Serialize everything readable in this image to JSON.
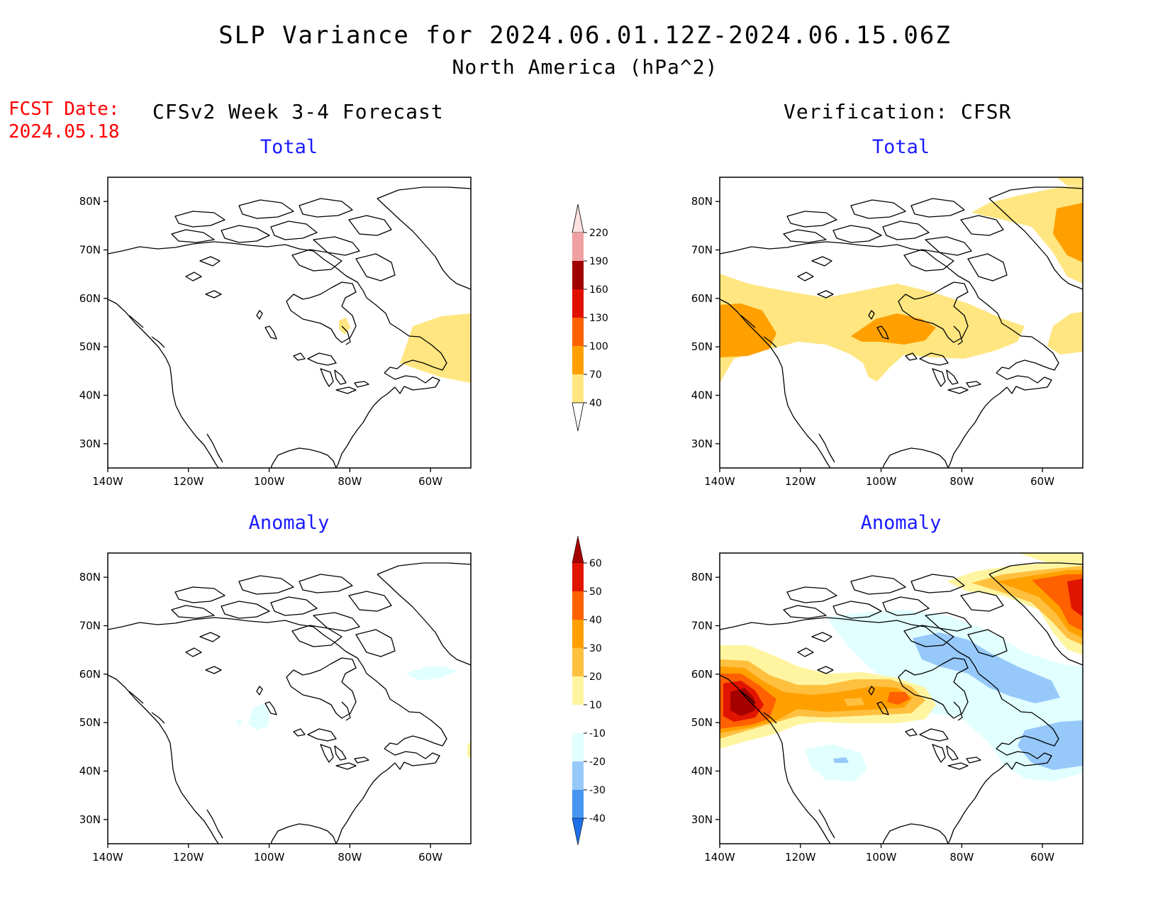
{
  "header": {
    "title": "SLP Variance for 2024.06.01.12Z-2024.06.15.06Z",
    "subtitle": "North America (hPa^2)",
    "fcst_label": "FCST Date:",
    "fcst_date": "2024.05.18"
  },
  "columns": {
    "left": "CFSv2 Week 3-4 Forecast",
    "right": "Verification: CFSR"
  },
  "panels": {
    "top_left": "Total",
    "top_right": "Total",
    "bottom_left": "Anomaly",
    "bottom_right": "Anomaly"
  },
  "axes": {
    "lon_ticks": [
      "140W",
      "120W",
      "100W",
      "80W",
      "60W"
    ],
    "lat_ticks": [
      "80N",
      "70N",
      "60N",
      "50N",
      "40N",
      "30N"
    ],
    "lon_range": [
      -140,
      -50
    ],
    "lat_range": [
      25,
      85
    ]
  },
  "total_scale": {
    "labels": [
      "40",
      "70",
      "100",
      "130",
      "160",
      "190",
      "220"
    ],
    "colors": [
      "#ffe680",
      "#ffa000",
      "#ff6000",
      "#e01000",
      "#a00000",
      "#f0a0a0",
      "#fde0e0"
    ]
  },
  "anomaly_scale": {
    "labels": [
      "-40",
      "-30",
      "-20",
      "-10",
      "10",
      "20",
      "30",
      "40",
      "50",
      "60"
    ],
    "colors": [
      "#1e6ee6",
      "#4696f0",
      "#96c8fa",
      "#e1ffff",
      "#ffffff",
      "#fff5a0",
      "#ffc040",
      "#ffa000",
      "#ff6000",
      "#e11400",
      "#a50000"
    ]
  }
}
